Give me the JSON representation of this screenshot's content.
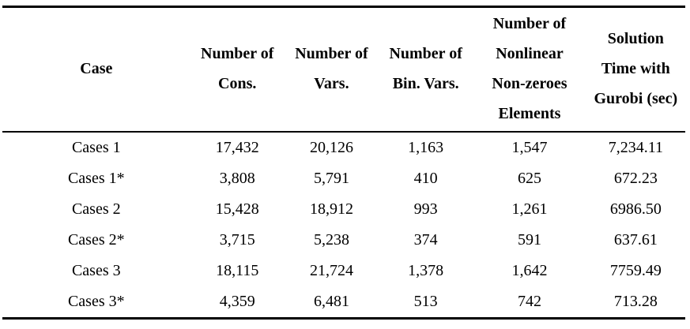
{
  "colors": {
    "background": "#ffffff",
    "text": "#000000",
    "rule": "#000000"
  },
  "table": {
    "columns": [
      {
        "id": "case",
        "lines": [
          "Case"
        ]
      },
      {
        "id": "num_cons",
        "lines": [
          "Number of",
          "Cons."
        ]
      },
      {
        "id": "num_vars",
        "lines": [
          "Number of",
          "Vars."
        ]
      },
      {
        "id": "num_bin_vars",
        "lines": [
          "Number of",
          "Bin. Vars."
        ]
      },
      {
        "id": "num_nonlinear",
        "lines": [
          "Number of",
          "Nonlinear",
          "Non-zeroes",
          "Elements"
        ]
      },
      {
        "id": "solution_time",
        "lines": [
          "Solution",
          "Time with",
          "Gurobi (sec)"
        ]
      }
    ],
    "rows": [
      [
        "Cases 1",
        "17,432",
        "20,126",
        "1,163",
        "1,547",
        "7,234.11"
      ],
      [
        "Cases 1*",
        "3,808",
        "5,791",
        "410",
        "625",
        "672.23"
      ],
      [
        "Cases 2",
        "15,428",
        "18,912",
        "993",
        "1,261",
        "6986.50"
      ],
      [
        "Cases 2*",
        "3,715",
        "5,238",
        "374",
        "591",
        "637.61"
      ],
      [
        "Cases 3",
        "18,115",
        "21,724",
        "1,378",
        "1,642",
        "7759.49"
      ],
      [
        "Cases 3*",
        "4,359",
        "6,481",
        "513",
        "742",
        "713.28"
      ]
    ]
  }
}
